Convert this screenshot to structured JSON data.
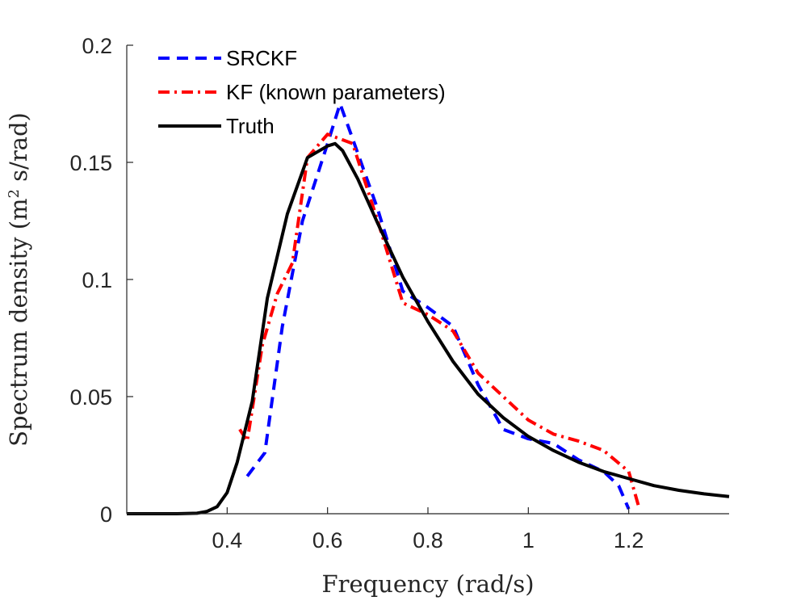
{
  "chart_data": {
    "type": "line",
    "title": "",
    "xlabel": "Frequency (rad/s)",
    "ylabel_parts": [
      "Spectrum density (m",
      "2",
      " s/rad)"
    ],
    "xlim": [
      0.2,
      1.4
    ],
    "ylim": [
      0,
      0.2
    ],
    "xticks": [
      0.4,
      0.6,
      0.8,
      1,
      1.2
    ],
    "xtick_labels": [
      "0.4",
      "0.6",
      "0.8",
      "1",
      "1.2"
    ],
    "yticks": [
      0,
      0.05,
      0.1,
      0.15,
      0.2
    ],
    "ytick_labels": [
      "0",
      "0.05",
      "0.1",
      "0.15",
      "0.2"
    ],
    "grid": false,
    "legend_position": "top-left",
    "series": [
      {
        "name": "SRCKF",
        "color": "#0000ff",
        "style": "dashed",
        "x": [
          0.44,
          0.475,
          0.51,
          0.55,
          0.6,
          0.625,
          0.65,
          0.7,
          0.75,
          0.8,
          0.85,
          0.9,
          0.95,
          1.0,
          1.05,
          1.1,
          1.15,
          1.18,
          1.2
        ],
        "y": [
          0.016,
          0.026,
          0.08,
          0.125,
          0.158,
          0.175,
          0.16,
          0.13,
          0.095,
          0.088,
          0.08,
          0.055,
          0.036,
          0.032,
          0.03,
          0.023,
          0.018,
          0.012,
          0.002
        ]
      },
      {
        "name": "KF (known parameters)",
        "color": "#ff0000",
        "style": "dashdot",
        "x": [
          0.425,
          0.44,
          0.47,
          0.5,
          0.53,
          0.56,
          0.6,
          0.65,
          0.7,
          0.75,
          0.8,
          0.85,
          0.9,
          0.95,
          1.0,
          1.05,
          1.1,
          1.15,
          1.2,
          1.22
        ],
        "y": [
          0.036,
          0.031,
          0.072,
          0.094,
          0.107,
          0.152,
          0.162,
          0.158,
          0.125,
          0.09,
          0.085,
          0.078,
          0.06,
          0.05,
          0.04,
          0.034,
          0.031,
          0.027,
          0.018,
          0.003
        ]
      },
      {
        "name": "Truth",
        "color": "#000000",
        "style": "solid",
        "x": [
          0.2,
          0.3,
          0.34,
          0.36,
          0.38,
          0.4,
          0.42,
          0.45,
          0.48,
          0.52,
          0.56,
          0.6,
          0.615,
          0.63,
          0.66,
          0.7,
          0.75,
          0.8,
          0.85,
          0.9,
          0.95,
          1.0,
          1.05,
          1.1,
          1.15,
          1.2,
          1.25,
          1.3,
          1.35,
          1.4
        ],
        "y": [
          0,
          0,
          0.0002,
          0.001,
          0.003,
          0.009,
          0.022,
          0.048,
          0.092,
          0.128,
          0.152,
          0.157,
          0.158,
          0.155,
          0.143,
          0.124,
          0.101,
          0.082,
          0.065,
          0.051,
          0.041,
          0.033,
          0.027,
          0.022,
          0.018,
          0.015,
          0.012,
          0.01,
          0.0085,
          0.0073
        ]
      }
    ]
  }
}
